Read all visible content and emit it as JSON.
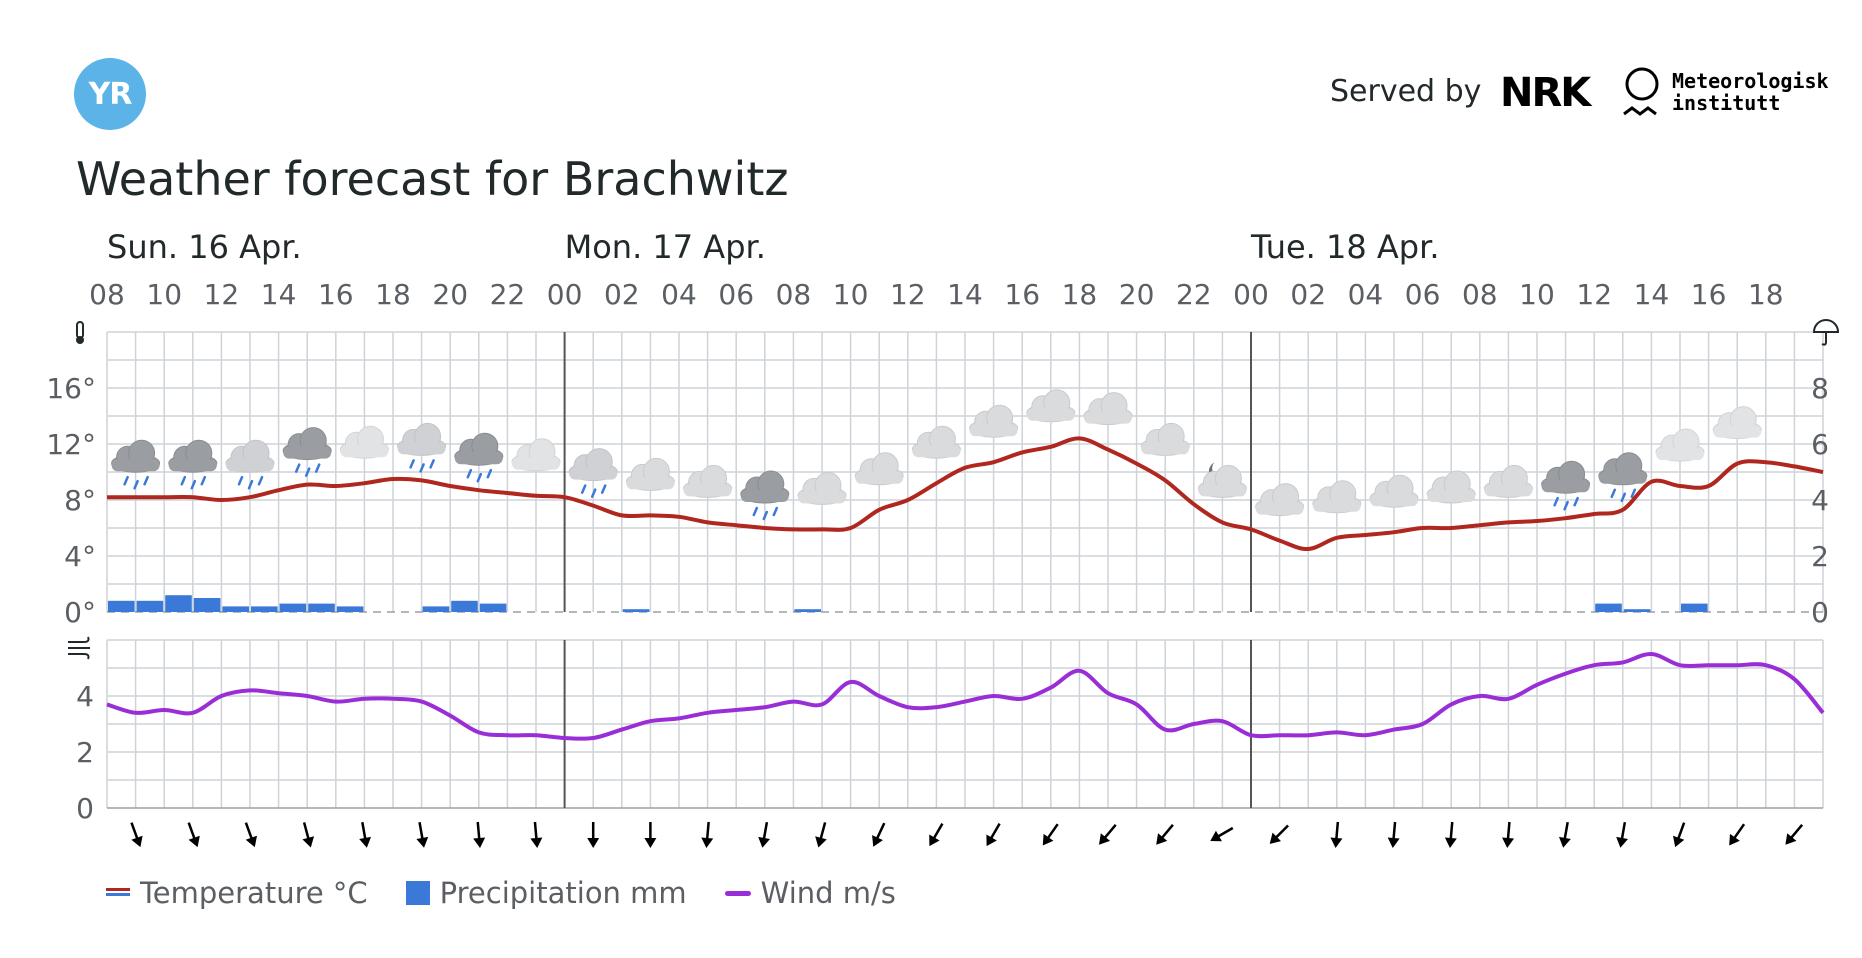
{
  "header": {
    "logo_text": "YR",
    "served_by": "Served by",
    "nrk": "NRK",
    "met_line1": "Meteorologisk",
    "met_line2": "institutt"
  },
  "title": "Weather forecast for Brachwitz",
  "legend": {
    "temperature": "Temperature °C",
    "precipitation": "Precipitation mm",
    "wind": "Wind m/s"
  },
  "colors": {
    "temperature": "#b0271f",
    "temperature_cold": "#3b79d9",
    "precipitation": "#3b79d9",
    "wind": "#9a2ed6",
    "grid": "#cdd3d8",
    "logo": "#5bb3e8"
  },
  "chart_data": [
    {
      "type": "line",
      "title": "Temperature and precipitation",
      "days": [
        "Sun. 16 Apr.",
        "Mon. 17 Apr.",
        "Tue. 18 Apr."
      ],
      "x_tick_labels": [
        "08",
        "10",
        "12",
        "14",
        "16",
        "18",
        "20",
        "22",
        "00",
        "02",
        "04",
        "06",
        "08",
        "10",
        "12",
        "14",
        "16",
        "18",
        "20",
        "22",
        "00",
        "02",
        "04",
        "06",
        "08",
        "10",
        "12",
        "14",
        "16",
        "18"
      ],
      "y_left_ticks": [
        "0°",
        "4°",
        "8°",
        "12°",
        "16°"
      ],
      "y_left_range": [
        0,
        20
      ],
      "y_right_ticks": [
        "0",
        "2",
        "4",
        "6",
        "8"
      ],
      "y_right_range": [
        0,
        10
      ],
      "temperature_hourly": [
        8.2,
        8.2,
        8.2,
        8.2,
        8.0,
        8.2,
        8.7,
        9.1,
        9.0,
        9.2,
        9.5,
        9.4,
        9.0,
        8.7,
        8.5,
        8.3,
        8.2,
        7.6,
        6.9,
        6.9,
        6.8,
        6.4,
        6.2,
        6.0,
        5.9,
        5.9,
        6.0,
        7.3,
        8.0,
        9.2,
        10.3,
        10.7,
        11.4,
        11.8,
        12.4,
        11.6,
        10.6,
        9.4,
        7.7,
        6.4,
        5.9,
        5.1,
        4.5,
        5.3,
        5.5,
        5.7,
        6.0,
        6.0,
        6.2,
        6.4,
        6.5,
        6.7,
        7.0,
        7.3,
        9.3,
        9.0,
        9.0,
        10.6,
        10.7,
        10.4,
        10.0
      ],
      "precipitation_hourly": [
        0.4,
        0.4,
        0.6,
        0.5,
        0.2,
        0.2,
        0.3,
        0.3,
        0.2,
        0,
        0,
        0.2,
        0.4,
        0.3,
        0,
        0,
        0,
        0,
        0.1,
        0,
        0,
        0,
        0,
        0,
        0.1,
        0,
        0,
        0,
        0,
        0,
        0,
        0,
        0,
        0,
        0,
        0,
        0,
        0,
        0,
        0,
        0,
        0,
        0,
        0,
        0,
        0,
        0,
        0,
        0,
        0,
        0,
        0,
        0.3,
        0.1,
        0,
        0.3,
        0,
        0,
        0,
        0,
        0
      ],
      "weather_icons": [
        "rain-heavy",
        "rain-heavy",
        "rain-light",
        "rain-heavy",
        "cloud-light",
        "rain-light",
        "rain-heavy",
        "cloud-light",
        "rain-light",
        "cloud",
        "cloud",
        "rain-heavy",
        "cloud",
        "cloud",
        "cloud",
        "cloud",
        "cloud",
        "cloud",
        "cloud",
        "cloud-moon",
        "cloud",
        "cloud",
        "cloud",
        "cloud",
        "cloud",
        "rain-heavy",
        "rain-heavy",
        "cloud-light",
        "cloud-light"
      ]
    },
    {
      "type": "line",
      "title": "Wind",
      "y_ticks": [
        "0",
        "2",
        "4"
      ],
      "y_range": [
        0,
        6
      ],
      "wind_hourly": [
        3.7,
        3.4,
        3.5,
        3.4,
        4.0,
        4.2,
        4.1,
        4.0,
        3.8,
        3.9,
        3.9,
        3.8,
        3.3,
        2.7,
        2.6,
        2.6,
        2.5,
        2.5,
        2.8,
        3.1,
        3.2,
        3.4,
        3.5,
        3.6,
        3.8,
        3.7,
        4.5,
        4.0,
        3.6,
        3.6,
        3.8,
        4.0,
        3.9,
        4.3,
        4.9,
        4.1,
        3.7,
        2.8,
        3.0,
        3.1,
        2.6,
        2.6,
        2.6,
        2.7,
        2.6,
        2.8,
        3.0,
        3.7,
        4.0,
        3.9,
        4.4,
        4.8,
        5.1,
        5.2,
        5.5,
        5.1,
        5.1,
        5.1,
        5.1,
        4.6,
        3.4
      ],
      "wind_direction_from_deg": [
        340,
        340,
        340,
        345,
        350,
        350,
        355,
        355,
        0,
        0,
        5,
        10,
        15,
        25,
        30,
        30,
        35,
        40,
        40,
        60,
        45,
        5,
        5,
        5,
        5,
        10,
        10,
        20,
        35,
        40
      ]
    }
  ]
}
